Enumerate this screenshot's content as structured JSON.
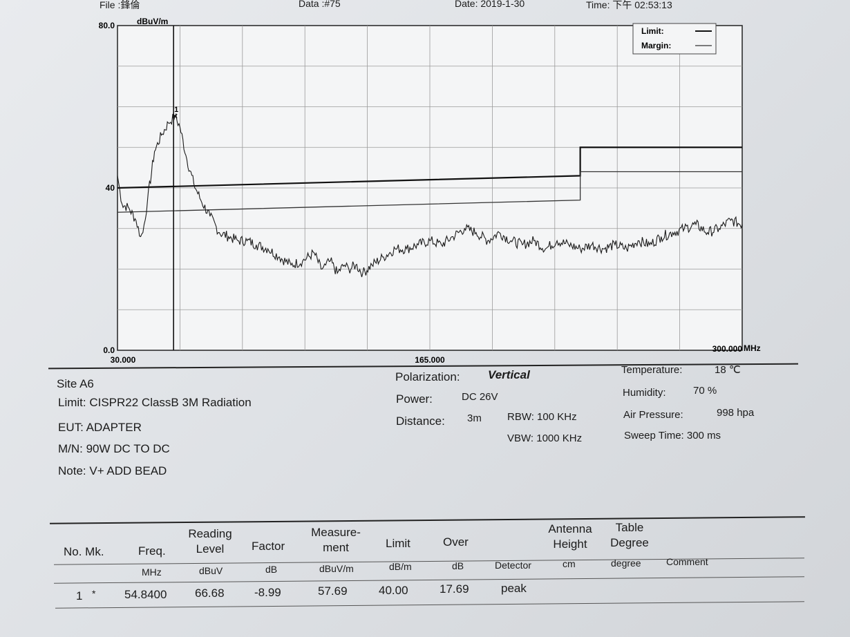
{
  "header": {
    "file": "File :鋒倫",
    "data": "Data :#75",
    "date": "Date: 2019-1-30",
    "time": "Time: 下午 02:53:13"
  },
  "chart_data": {
    "type": "line",
    "ylabel": "dBuV/m",
    "xlabel": "MHz",
    "xlim": [
      30,
      300
    ],
    "ylim": [
      0,
      80
    ],
    "y_tick_labels": [
      "80.0",
      "40",
      "0.0"
    ],
    "x_tick_labels": [
      "30.000",
      "165.000",
      "300.000"
    ],
    "grid": true,
    "legend": {
      "placement": "top-right",
      "entries": [
        "Limit:",
        "Margin:"
      ]
    },
    "limit": {
      "x": [
        30,
        230,
        230,
        300
      ],
      "y": [
        40,
        43,
        50,
        50
      ]
    },
    "margin": {
      "x": [
        30,
        230,
        230,
        300
      ],
      "y": [
        34,
        37,
        44,
        44
      ]
    },
    "measurement": {
      "x": [
        30,
        32,
        35,
        38,
        40,
        41,
        43,
        46,
        49,
        52,
        54.84,
        57,
        60,
        63,
        66,
        70,
        74,
        78,
        82,
        86,
        90,
        95,
        100,
        105,
        110,
        115,
        118,
        120,
        122,
        125,
        128,
        130,
        133,
        136,
        140,
        145,
        150,
        155,
        160,
        165,
        170,
        175,
        180,
        185,
        190,
        195,
        200,
        205,
        210,
        215,
        220,
        225,
        230,
        235,
        240,
        245,
        250,
        255,
        260,
        265,
        270,
        275,
        280,
        285,
        290,
        295,
        300
      ],
      "y": [
        43,
        36,
        35,
        32,
        28,
        29,
        37,
        49,
        53,
        56,
        57.69,
        55,
        47,
        41,
        37,
        33,
        29,
        28,
        27,
        27,
        26,
        25,
        23,
        21,
        22,
        24,
        20,
        21,
        22,
        19,
        21,
        20,
        21,
        19,
        21,
        23,
        25,
        25,
        26,
        27,
        26,
        28,
        30,
        29,
        27,
        29,
        27,
        26,
        27,
        25,
        27,
        26,
        25,
        26,
        25,
        26,
        25,
        27,
        26,
        28,
        29,
        30,
        31,
        29,
        30,
        32,
        31
      ]
    },
    "marker": {
      "label": "1",
      "x": 54.84,
      "y": 57.69
    }
  },
  "info": {
    "site": "Site  A6",
    "limit": "Limit:  CISPR22 ClassB 3M Radiation",
    "eut": "EUT:  ADAPTER",
    "mn": "M/N:  90W DC TO DC",
    "note": "Note:  V+ ADD BEAD",
    "polarization_label": "Polarization:",
    "polarization_value": "Vertical",
    "power_label": "Power:",
    "power_value": "DC 26V",
    "distance_label": "Distance:",
    "distance_value": "3m",
    "rbw": "RBW: 100 KHz",
    "vbw": "VBW: 1000 KHz",
    "temperature_label": "Temperature:",
    "temperature_value": "18 ℃",
    "humidity_label": "Humidity:",
    "humidity_value": "70 %",
    "pressure_label": "Air Pressure:",
    "pressure_value": "998 hpa",
    "sweep": "Sweep Time: 300 ms"
  },
  "table": {
    "headers": {
      "no_mk": "No. Mk.",
      "freq": "Freq.",
      "reading_1": "Reading",
      "reading_2": "Level",
      "factor": "Factor",
      "measure_1": "Measure-",
      "measure_2": "ment",
      "limit": "Limit",
      "over": "Over",
      "antenna_1": "Antenna",
      "antenna_2": "Height",
      "table_1": "Table",
      "table_2": "Degree"
    },
    "units": {
      "freq": "MHz",
      "reading": "dBuV",
      "factor": "dB",
      "measure": "dBuV/m",
      "limit": "dB/m",
      "over": "dB",
      "detector": "Detector",
      "antenna": "cm",
      "table": "degree",
      "comment": "Comment"
    },
    "rows": [
      {
        "no": "1",
        "mk": "*",
        "freq": "54.8400",
        "reading": "66.68",
        "factor": "-8.99",
        "measure": "57.69",
        "limit": "40.00",
        "over": "17.69",
        "detector": "peak"
      }
    ]
  }
}
